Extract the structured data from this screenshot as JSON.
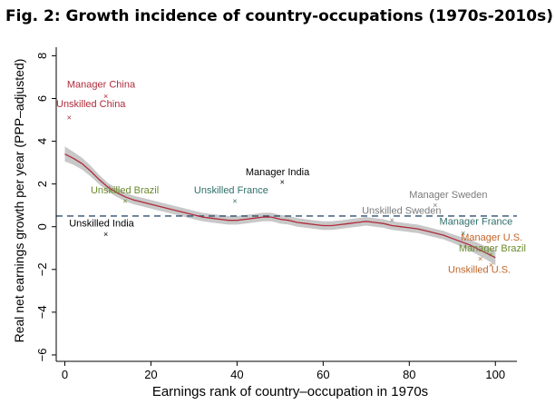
{
  "figure_title": "Fig. 2: Growth incidence of country-occupations (1970s-2010s)",
  "chart_data": {
    "type": "scatter",
    "title": "Fig. 2: Growth incidence of country-occupations (1970s-2010s)",
    "xlabel": "Earnings rank of country–occupation in 1970s",
    "ylabel": "Real net earnings growth per year (PPP–adjusted)",
    "xlim": [
      -2,
      105
    ],
    "ylim": [
      -6.3,
      8.4
    ],
    "xticks": [
      0,
      20,
      40,
      60,
      80,
      100
    ],
    "yticks": [
      -6,
      -4,
      -2,
      0,
      2,
      4,
      6,
      8
    ],
    "grid": false,
    "reference_line": {
      "y": 0.5,
      "style": "dashed",
      "color": "#2d4f6f"
    },
    "colors": {
      "scatter": "#000000",
      "smooth": "#b02a3a",
      "band": "#c8c8c8",
      "axis": "#000000"
    },
    "scatter_series": [],
    "smooth": {
      "x": [
        0,
        2,
        4,
        6,
        8,
        10,
        12,
        14,
        16,
        18,
        20,
        22,
        24,
        26,
        28,
        30,
        32,
        34,
        36,
        38,
        40,
        42,
        44,
        46,
        48,
        50,
        52,
        54,
        56,
        58,
        60,
        62,
        64,
        66,
        68,
        70,
        72,
        74,
        76,
        78,
        80,
        82,
        84,
        86,
        88,
        90,
        92,
        94,
        96,
        98,
        100
      ],
      "y": [
        3.4,
        3.2,
        2.95,
        2.6,
        2.2,
        1.85,
        1.6,
        1.4,
        1.25,
        1.15,
        1.05,
        0.95,
        0.85,
        0.75,
        0.65,
        0.55,
        0.45,
        0.4,
        0.35,
        0.3,
        0.3,
        0.35,
        0.4,
        0.45,
        0.45,
        0.35,
        0.3,
        0.2,
        0.15,
        0.1,
        0.05,
        0.05,
        0.1,
        0.15,
        0.2,
        0.25,
        0.2,
        0.15,
        0.05,
        0.0,
        -0.05,
        -0.1,
        -0.2,
        -0.3,
        -0.4,
        -0.55,
        -0.7,
        -0.85,
        -1.05,
        -1.25,
        -1.45
      ],
      "band": [
        0.35,
        0.3,
        0.28,
        0.25,
        0.22,
        0.2,
        0.2,
        0.2,
        0.2,
        0.2,
        0.2,
        0.2,
        0.2,
        0.2,
        0.2,
        0.2,
        0.2,
        0.2,
        0.2,
        0.2,
        0.2,
        0.2,
        0.2,
        0.2,
        0.2,
        0.2,
        0.2,
        0.2,
        0.2,
        0.2,
        0.2,
        0.2,
        0.2,
        0.2,
        0.2,
        0.2,
        0.2,
        0.2,
        0.2,
        0.2,
        0.2,
        0.2,
        0.2,
        0.2,
        0.2,
        0.2,
        0.22,
        0.25,
        0.28,
        0.3,
        0.35
      ]
    },
    "annotations": [
      {
        "text": "Manager China",
        "x": 9.5,
        "y": 6.1,
        "color": "#b02a3a",
        "label_x": 0.5,
        "label_y": 6.5,
        "anchor": "start"
      },
      {
        "text": "Unskilled China",
        "x": 1,
        "y": 5.1,
        "color": "#b02a3a",
        "label_x": -2,
        "label_y": 5.6,
        "anchor": "start"
      },
      {
        "text": "Manager India",
        "x": 50.5,
        "y": 2.1,
        "color": "#000000",
        "label_x": 42,
        "label_y": 2.4,
        "anchor": "start"
      },
      {
        "text": "Unskilled Brazil",
        "x": 14,
        "y": 1.2,
        "color": "#6a8a2a",
        "label_x": 6,
        "label_y": 1.55,
        "anchor": "start"
      },
      {
        "text": "Unskilled France",
        "x": 39.5,
        "y": 1.2,
        "color": "#2f6f6a",
        "label_x": 30,
        "label_y": 1.55,
        "anchor": "start"
      },
      {
        "text": "Unskilled India",
        "x": 9.5,
        "y": -0.35,
        "color": "#000000",
        "label_x": 1,
        "label_y": 0.0,
        "anchor": "start"
      },
      {
        "text": "Manager Sweden",
        "x": 86,
        "y": 1.0,
        "color": "#7a7a7a",
        "label_x": 80,
        "label_y": 1.35,
        "anchor": "start"
      },
      {
        "text": "Unskilled Sweden",
        "x": 76,
        "y": 0.3,
        "color": "#7a7a7a",
        "label_x": 69,
        "label_y": 0.6,
        "anchor": "start"
      },
      {
        "text": "Manager France",
        "x": 92.5,
        "y": -0.3,
        "color": "#2f6f6a",
        "label_x": 87,
        "label_y": 0.1,
        "anchor": "start"
      },
      {
        "text": "Manager U.S.",
        "x": 96.5,
        "y": -1.5,
        "color": "#c0662a",
        "label_x": 92,
        "label_y": -0.65,
        "anchor": "start"
      },
      {
        "text": "Manager Brazil",
        "x": 99,
        "y": -1.3,
        "color": "#6a8a2a",
        "label_x": 91.5,
        "label_y": -1.15,
        "anchor": "start"
      },
      {
        "text": "Unskilled U.S.",
        "x": 99,
        "y": -1.8,
        "color": "#c0662a",
        "label_x": 89,
        "label_y": -2.15,
        "anchor": "start"
      }
    ]
  }
}
